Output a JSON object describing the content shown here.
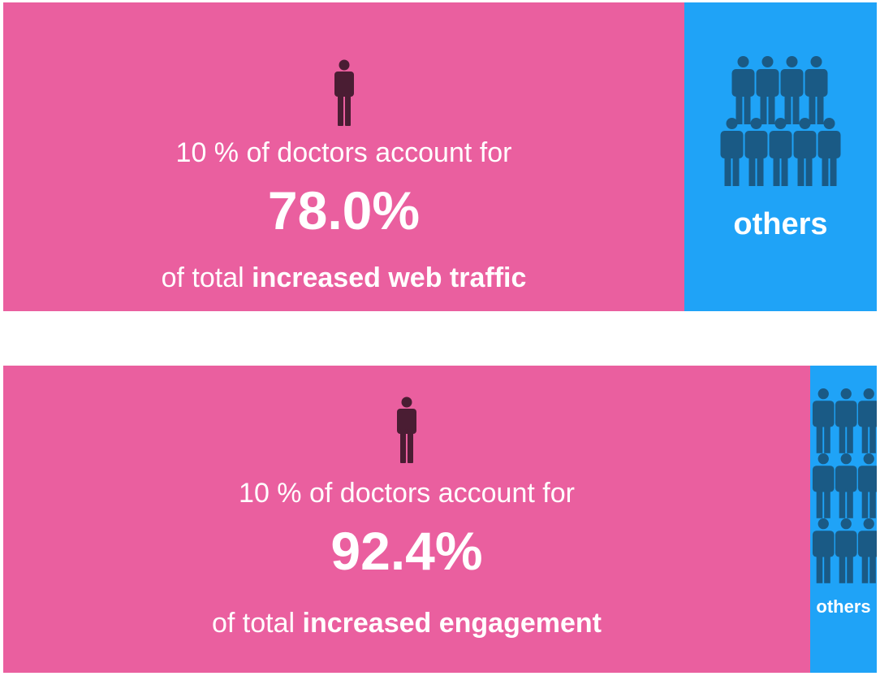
{
  "colors": {
    "top_share": "#ea5f9f",
    "others": "#1fa3f7",
    "person_dark": "#4a1d33",
    "crowd_icon": "#1a5a85",
    "text": "#ffffff"
  },
  "icons": {
    "single_person": "person-icon",
    "crowd": "crowd-icon"
  },
  "chart_data": [
    {
      "type": "bar",
      "orientation": "horizontal-stacked-100",
      "categories": [
        "10 % of doctors",
        "others"
      ],
      "values": [
        78.0,
        22.0
      ],
      "intro_text": "10 % of doctors account for",
      "percentage_text": "78.0%",
      "metric_prefix": "of total ",
      "metric_bold": "increased web traffic",
      "others_label": "others"
    },
    {
      "type": "bar",
      "orientation": "horizontal-stacked-100",
      "categories": [
        "10 % of doctors",
        "others"
      ],
      "values": [
        92.4,
        7.6
      ],
      "intro_text": "10 % of doctors account for",
      "percentage_text": "92.4%",
      "metric_prefix": "of total ",
      "metric_bold": "increased engagement",
      "others_label": "others"
    }
  ]
}
